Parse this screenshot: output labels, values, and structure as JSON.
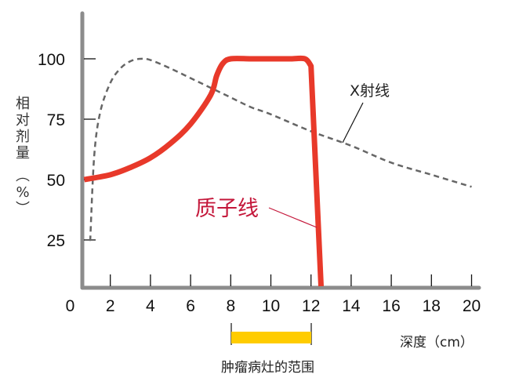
{
  "chart_data": {
    "type": "line",
    "title": "",
    "xlabel": "深度（cm）",
    "ylabel": "相对剂量（%）",
    "xlim": [
      0,
      20
    ],
    "ylim": [
      0,
      110
    ],
    "x_ticks": [
      "0",
      "2",
      "4",
      "6",
      "8",
      "10",
      "12",
      "14",
      "16",
      "18",
      "20"
    ],
    "y_ticks": [
      "25",
      "50",
      "75",
      "100"
    ],
    "grid": false,
    "series": [
      {
        "name": "质子线",
        "style": "solid",
        "color": "#e8392a",
        "x": [
          0.7,
          2,
          3,
          4,
          5,
          6,
          7,
          7.3,
          7.6,
          8,
          9,
          10,
          11,
          11.7,
          12.0,
          12.5
        ],
        "y": [
          50,
          52,
          55,
          59,
          65,
          73,
          85,
          93,
          98,
          100,
          100,
          100,
          100,
          100,
          97,
          0
        ]
      },
      {
        "name": "X射线",
        "style": "dashed",
        "color": "#666666",
        "x": [
          1.0,
          1.2,
          1.5,
          2,
          2.5,
          3,
          3.5,
          4,
          5,
          6,
          7,
          8,
          9,
          10,
          12,
          14,
          16,
          18,
          20
        ],
        "y": [
          25,
          60,
          78,
          90,
          96,
          99,
          100,
          99.5,
          96,
          92,
          88,
          84,
          80,
          77,
          70,
          64,
          57,
          52,
          47
        ]
      }
    ],
    "annotations": [
      {
        "text": "质子线",
        "color": "#c4173a",
        "points_to": [
          12.2,
          30
        ]
      },
      {
        "text": "X射线",
        "color": "#222222",
        "points_to": [
          13.8,
          64
        ]
      },
      {
        "text": "肿瘤病灶的范围",
        "range": [
          8,
          12
        ],
        "color": "#ffcc00"
      }
    ]
  },
  "labels": {
    "ylabel_chars": [
      "相",
      "对",
      "剂",
      "量",
      "︵",
      "%",
      "︶"
    ],
    "xlabel": "深度（cm）",
    "proton": "质子线",
    "xray": "X射线",
    "tumor": "肿瘤病灶的范围"
  },
  "colors": {
    "axis": "#8c8c8c",
    "proton": "#e8392a",
    "proton_label": "#c4173a",
    "xray": "#666666",
    "tumor_bar": "#ffcc00"
  }
}
